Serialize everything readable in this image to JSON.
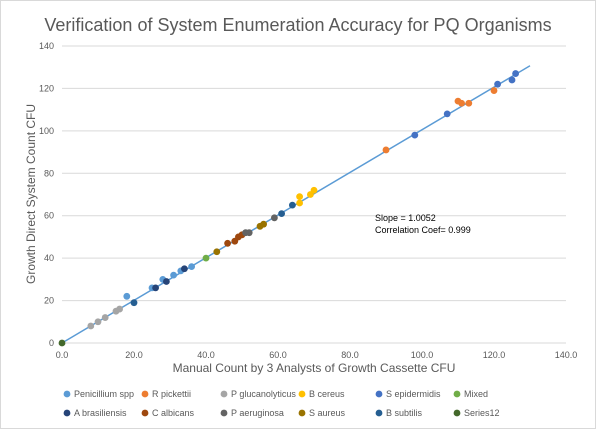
{
  "chart_data": {
    "type": "scatter",
    "title": "Verification of System Enumeration Accuracy for PQ Organisms",
    "xlabel": "Manual Count by 3 Analysts of Growth Cassette CFU",
    "ylabel": "Growth Direct System Count CFU",
    "xlim": [
      0,
      140
    ],
    "ylim": [
      0,
      140
    ],
    "x_ticks": [
      "0.0",
      "20.0",
      "40.0",
      "60.0",
      "80.0",
      "100.0",
      "120.0",
      "140.0"
    ],
    "y_ticks": [
      "0",
      "20",
      "40",
      "60",
      "80",
      "100",
      "120",
      "140"
    ],
    "grid": "horizontal",
    "legend_position": "bottom",
    "annotations": [
      "Slope = 1.0052",
      "Correlation Coef= 0.999"
    ],
    "trendline": {
      "slope": 1.0052,
      "intercept": 0,
      "x_range": [
        0,
        130
      ],
      "color": "#5b9bd5"
    },
    "series": [
      {
        "name": "Penicillium spp",
        "color": "#5b9bd5",
        "points": [
          [
            18,
            22
          ],
          [
            25,
            26
          ],
          [
            28,
            30
          ],
          [
            31,
            32
          ],
          [
            33,
            34
          ],
          [
            36,
            36
          ]
        ]
      },
      {
        "name": "R pickettii",
        "color": "#ed7d31",
        "points": [
          [
            90,
            91
          ],
          [
            110,
            114
          ],
          [
            111,
            113
          ],
          [
            113,
            113
          ],
          [
            120,
            119
          ]
        ]
      },
      {
        "name": "P glucanolyticus",
        "color": "#a5a5a5",
        "points": [
          [
            8,
            8
          ],
          [
            10,
            10
          ],
          [
            12,
            12
          ],
          [
            15,
            15
          ],
          [
            16,
            16
          ]
        ]
      },
      {
        "name": "B cereus",
        "color": "#ffc000",
        "points": [
          [
            66,
            66
          ],
          [
            66,
            69
          ],
          [
            69,
            70
          ],
          [
            70,
            72
          ]
        ]
      },
      {
        "name": "S epidermidis",
        "color": "#4472c4",
        "points": [
          [
            98,
            98
          ],
          [
            107,
            108
          ],
          [
            121,
            122
          ],
          [
            125,
            124
          ],
          [
            126,
            127
          ]
        ]
      },
      {
        "name": "Mixed",
        "color": "#70ad47",
        "points": [
          [
            40,
            40
          ]
        ]
      },
      {
        "name": "A brasiliensis",
        "color": "#264478",
        "points": [
          [
            26,
            26
          ],
          [
            29,
            29
          ],
          [
            34,
            35
          ]
        ]
      },
      {
        "name": "C albicans",
        "color": "#9e480e",
        "points": [
          [
            46,
            47
          ],
          [
            48,
            48
          ],
          [
            49,
            50
          ],
          [
            50,
            51
          ]
        ]
      },
      {
        "name": "P aeruginosa",
        "color": "#636363",
        "points": [
          [
            51,
            52
          ],
          [
            52,
            52
          ],
          [
            59,
            59
          ]
        ]
      },
      {
        "name": "S aureus",
        "color": "#997300",
        "points": [
          [
            43,
            43
          ],
          [
            55,
            55
          ],
          [
            56,
            56
          ]
        ]
      },
      {
        "name": "B subtilis",
        "color": "#255e91",
        "points": [
          [
            20,
            19
          ],
          [
            61,
            61
          ],
          [
            64,
            65
          ]
        ]
      },
      {
        "name": "Series12",
        "color": "#43682b",
        "points": [
          [
            0,
            0
          ]
        ]
      }
    ]
  }
}
